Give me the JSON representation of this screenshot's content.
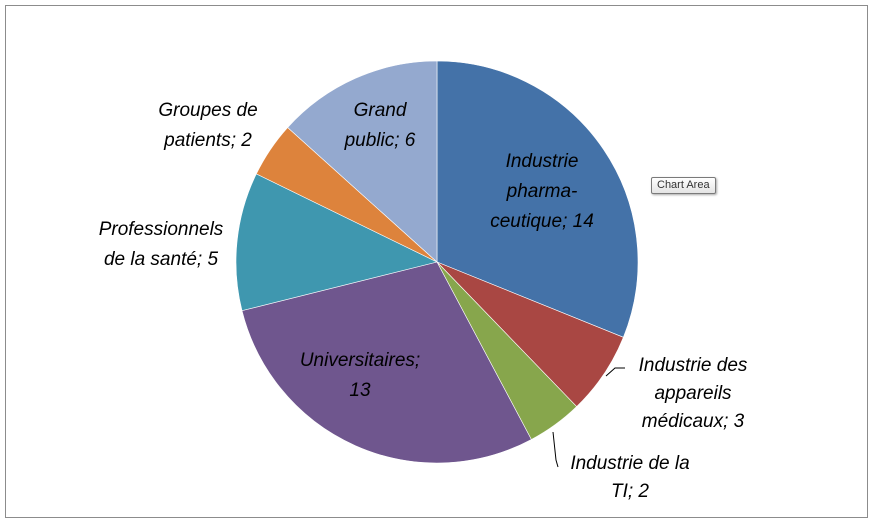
{
  "chart_data": {
    "type": "pie",
    "start_angle_deg": 0,
    "direction": "clockwise",
    "slices": [
      {
        "label": "Industrie pharma-ceutique",
        "lines": [
          "Industrie",
          "pharma-",
          "ceutique; 14"
        ],
        "value": 14,
        "color": "#4472A8"
      },
      {
        "label": "Industrie des appareils médicaux",
        "lines": [
          "Industrie des",
          "appareils",
          "médicaux; 3"
        ],
        "value": 3,
        "color": "#A94743"
      },
      {
        "label": "Industrie de la TI",
        "lines": [
          "Industrie de la",
          "TI; 2"
        ],
        "value": 2,
        "color": "#87A64C"
      },
      {
        "label": "Universitaires",
        "lines": [
          "Universitaires;",
          "13"
        ],
        "value": 13,
        "color": "#6F568E"
      },
      {
        "label": "Professionnels de la santé",
        "lines": [
          "Professionnels",
          "de la santé; 5"
        ],
        "value": 5,
        "color": "#3F97AF"
      },
      {
        "label": "Groupes de patients",
        "lines": [
          "Groupes de",
          "patients; 2"
        ],
        "value": 2,
        "color": "#DD833C"
      },
      {
        "label": "Grand public",
        "lines": [
          "Grand",
          "public; 6"
        ],
        "value": 6,
        "color": "#94A9CF"
      }
    ]
  },
  "tooltip": {
    "text": "Chart Area"
  }
}
